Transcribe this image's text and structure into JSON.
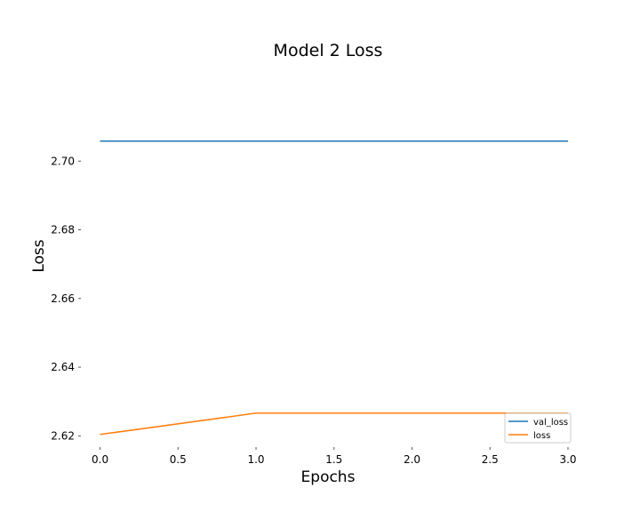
{
  "chart_data": {
    "type": "line",
    "title": "Model 2 Loss",
    "xlabel": "Epochs",
    "ylabel": "Loss",
    "xlim": [
      -0.1,
      3.0
    ],
    "ylim": [
      2.6175,
      2.7275
    ],
    "xticks": [
      0.0,
      0.5,
      1.0,
      1.5,
      2.0,
      2.5,
      3.0
    ],
    "xtick_labels": [
      "0.0",
      "0.5",
      "1.0",
      "1.5",
      "2.0",
      "2.5",
      "3.0"
    ],
    "yticks": [
      2.62,
      2.64,
      2.66,
      2.68,
      2.7
    ],
    "ytick_labels": [
      "2.62",
      "2.64",
      "2.66",
      "2.68",
      "2.70"
    ],
    "grid": false,
    "legend_position": "lower-right",
    "x": [
      0,
      1,
      2,
      3
    ],
    "series": [
      {
        "name": "val_loss",
        "color": "#1f77b4",
        "values": [
          2.7058,
          2.7058,
          2.7058,
          2.7058
        ]
      },
      {
        "name": "loss",
        "color": "#ff7f0e",
        "values": [
          2.6204,
          2.6266,
          2.6266,
          2.6266
        ]
      }
    ]
  }
}
